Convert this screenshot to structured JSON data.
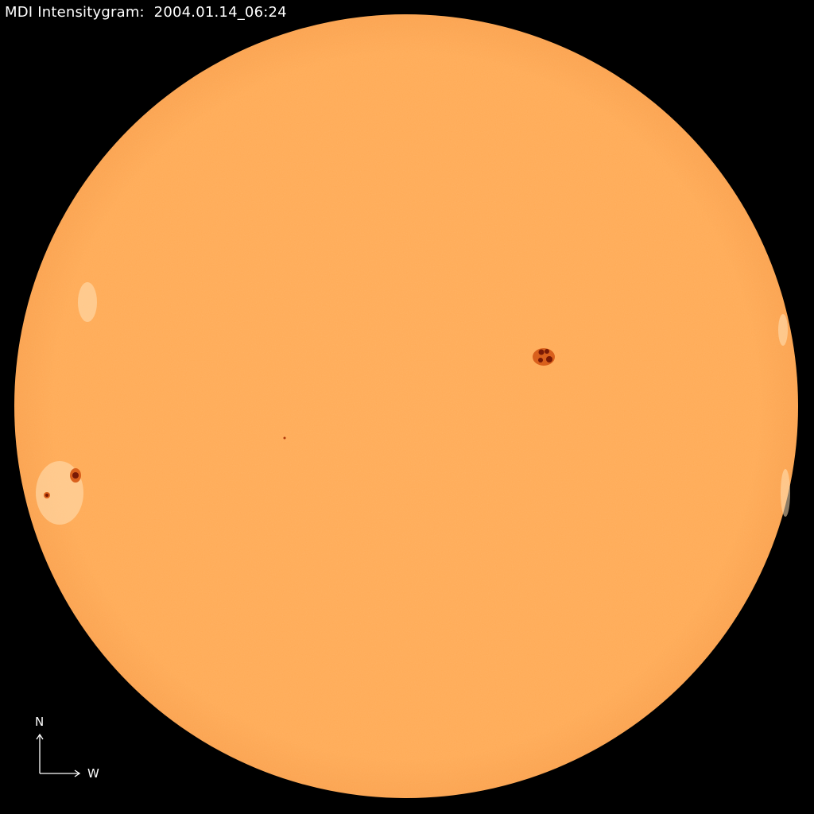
{
  "title": "MDI Intensitygram:  2004.01.14_06:24",
  "compass": {
    "north": "N",
    "west": "W"
  },
  "colors": {
    "background": "#000000",
    "disk": "#FFAA55",
    "sunspot_umbra": "#7A1A05",
    "sunspot_penumbra": "#D9601C",
    "facula": "#FFE2B8"
  }
}
